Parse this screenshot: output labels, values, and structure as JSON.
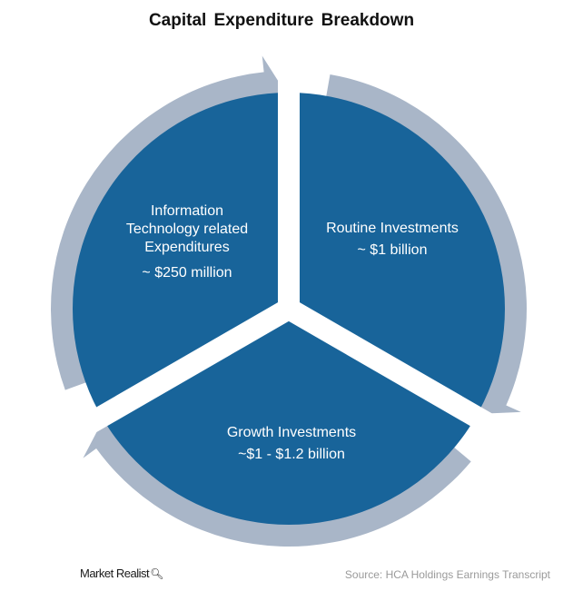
{
  "title": "Capital Expenditure Breakdown",
  "colors": {
    "segment": "#18649A",
    "arrow": "#A9B6C8",
    "background": "#FFFFFF"
  },
  "segments": [
    {
      "lines": [
        "Information",
        "Technology related",
        "Expenditures",
        "~ $250 million"
      ]
    },
    {
      "lines": [
        "Routine Investments",
        "~ $1 billion"
      ]
    },
    {
      "lines": [
        "Growth Investments",
        "~$1 - $1.2 billion"
      ]
    }
  ],
  "footer": {
    "brand": "Market Realist",
    "source": "Source: HCA Holdings Earnings Transcript"
  }
}
